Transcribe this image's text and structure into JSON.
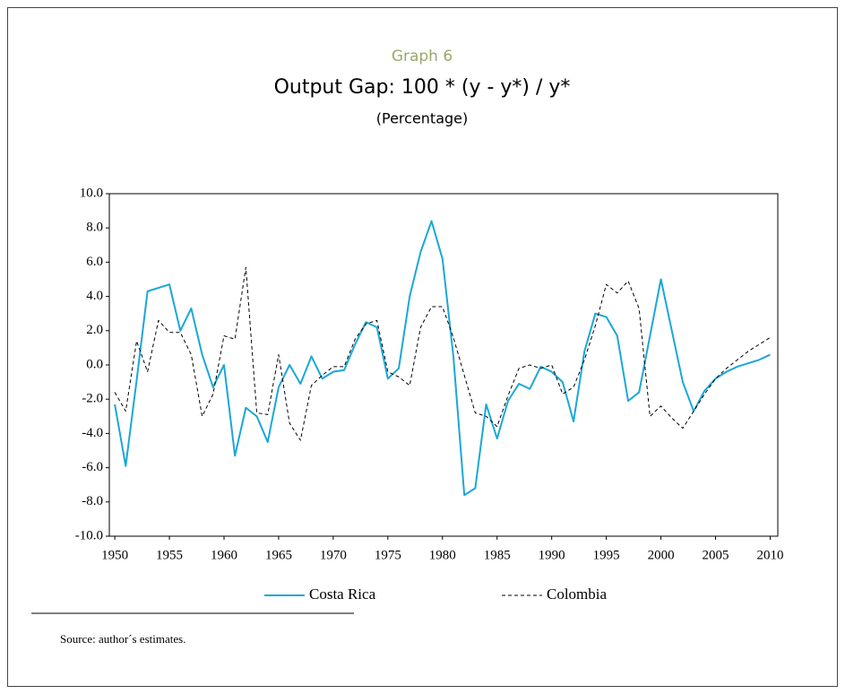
{
  "chart_data": {
    "type": "line",
    "supertitle": "Graph 6",
    "title": "Output Gap: 100 * (y - y*) / y*",
    "subtitle": "(Percentage)",
    "source": "Source: author´s estimates.",
    "x": [
      1950,
      1951,
      1952,
      1953,
      1954,
      1955,
      1956,
      1957,
      1958,
      1959,
      1960,
      1961,
      1962,
      1963,
      1964,
      1965,
      1966,
      1967,
      1968,
      1969,
      1970,
      1971,
      1972,
      1973,
      1974,
      1975,
      1976,
      1977,
      1978,
      1979,
      1980,
      1981,
      1982,
      1983,
      1984,
      1985,
      1986,
      1987,
      1988,
      1989,
      1990,
      1991,
      1992,
      1993,
      1994,
      1995,
      1996,
      1997,
      1998,
      1999,
      2000,
      2001,
      2002,
      2003,
      2004,
      2005,
      2006,
      2007,
      2008,
      2009,
      2010
    ],
    "series": [
      {
        "name": "Costa Rica",
        "color": "#1aa7d8",
        "line_style": "solid",
        "values": [
          -2.3,
          -5.9,
          -0.9,
          4.3,
          4.5,
          4.7,
          2.0,
          3.3,
          0.6,
          -1.3,
          0.0,
          -5.3,
          -2.5,
          -3.0,
          -4.5,
          -1.3,
          0.0,
          -1.1,
          0.5,
          -0.8,
          -0.4,
          -0.3,
          1.2,
          2.5,
          2.2,
          -0.8,
          -0.2,
          4.0,
          6.6,
          8.4,
          6.2,
          0.5,
          -7.6,
          -7.2,
          -2.3,
          -4.3,
          -2.1,
          -1.1,
          -1.4,
          -0.1,
          -0.4,
          -1.0,
          -3.3,
          0.8,
          3.0,
          2.8,
          1.7,
          -2.1,
          -1.6,
          1.7,
          5.0,
          2.0,
          -1.0,
          -2.7,
          -1.5,
          -0.8,
          -0.4,
          -0.1,
          0.1,
          0.3,
          0.6
        ]
      },
      {
        "name": "Colombia",
        "color": "#000000",
        "line_style": "dashed",
        "values": [
          -1.6,
          -2.7,
          1.4,
          -0.4,
          2.6,
          1.9,
          1.9,
          0.6,
          -3.0,
          -1.7,
          1.7,
          1.5,
          5.7,
          -2.8,
          -2.9,
          0.6,
          -3.4,
          -4.4,
          -1.2,
          -0.6,
          -0.1,
          -0.1,
          1.5,
          2.4,
          2.6,
          -0.4,
          -0.7,
          -1.2,
          2.2,
          3.4,
          3.4,
          1.6,
          -0.6,
          -2.8,
          -3.0,
          -3.6,
          -1.8,
          -0.2,
          0.0,
          -0.2,
          0.0,
          -1.7,
          -1.3,
          0.3,
          2.3,
          4.7,
          4.2,
          4.9,
          3.3,
          -3.0,
          -2.4,
          -3.1,
          -3.7,
          -2.7,
          -1.7,
          -0.8,
          -0.2,
          0.3,
          0.8,
          1.2,
          1.6
        ]
      }
    ],
    "xlim": [
      1949.5,
      2010.7
    ],
    "xticks": [
      1950,
      1955,
      1960,
      1965,
      1970,
      1975,
      1980,
      1985,
      1990,
      1995,
      2000,
      2005,
      2010
    ],
    "ylim": [
      -10,
      10
    ],
    "yticks": [
      {
        "value": -10,
        "label": "-10.0"
      },
      {
        "value": -8,
        "label": "-8.0"
      },
      {
        "value": -6,
        "label": "-6.0"
      },
      {
        "value": -4,
        "label": "-4.0"
      },
      {
        "value": -2,
        "label": "-2.0"
      },
      {
        "value": 0,
        "label": "0.0"
      },
      {
        "value": 2,
        "label": "2.0"
      },
      {
        "value": 4,
        "label": "4.0"
      },
      {
        "value": 6,
        "label": "6.0"
      },
      {
        "value": 8,
        "label": "8.0"
      },
      {
        "value": 10,
        "label": "10.0"
      }
    ],
    "grid": false,
    "legend": "bottom"
  }
}
